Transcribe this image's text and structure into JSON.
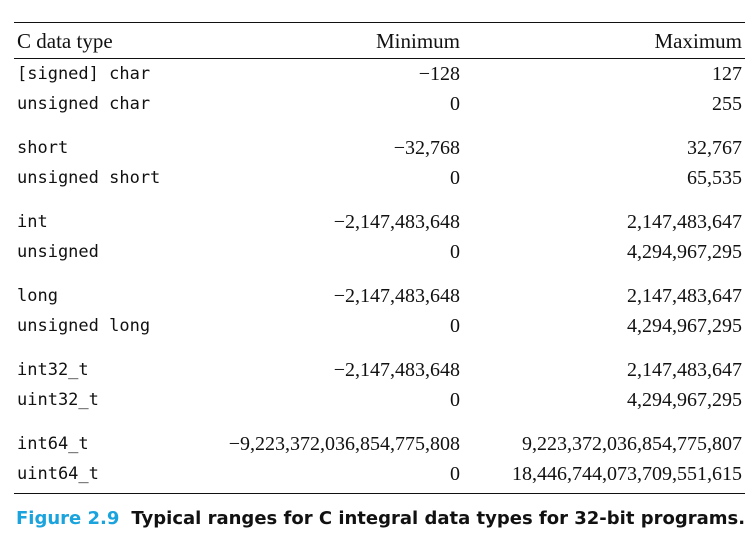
{
  "table": {
    "headers": {
      "type": "C data type",
      "minimum": "Minimum",
      "maximum": "Maximum"
    },
    "rows": [
      {
        "type_prefix": "[signed]",
        "type_main": "char",
        "min": "−128",
        "max": "127",
        "group_start": false
      },
      {
        "type_prefix": "",
        "type_main": "unsigned char",
        "min": "0",
        "max": "255",
        "group_start": false
      },
      {
        "type_prefix": "",
        "type_main": "short",
        "min": "−32,768",
        "max": "32,767",
        "group_start": true
      },
      {
        "type_prefix": "",
        "type_main": "unsigned short",
        "min": "0",
        "max": "65,535",
        "group_start": false
      },
      {
        "type_prefix": "",
        "type_main": "int",
        "min": "−2,147,483,648",
        "max": "2,147,483,647",
        "group_start": true
      },
      {
        "type_prefix": "",
        "type_main": "unsigned",
        "min": "0",
        "max": "4,294,967,295",
        "group_start": false
      },
      {
        "type_prefix": "",
        "type_main": "long",
        "min": "−2,147,483,648",
        "max": "2,147,483,647",
        "group_start": true
      },
      {
        "type_prefix": "",
        "type_main": "unsigned long",
        "min": "0",
        "max": "4,294,967,295",
        "group_start": false
      },
      {
        "type_prefix": "",
        "type_main": "int32_t",
        "min": "−2,147,483,648",
        "max": "2,147,483,647",
        "group_start": true
      },
      {
        "type_prefix": "",
        "type_main": "uint32_t",
        "min": "0",
        "max": "4,294,967,295",
        "group_start": false
      },
      {
        "type_prefix": "",
        "type_main": "int64_t",
        "min": "−9,223,372,036,854,775,808",
        "max": "9,223,372,036,854,775,807",
        "group_start": true
      },
      {
        "type_prefix": "",
        "type_main": "uint64_t",
        "min": "0",
        "max": "18,446,744,073,709,551,615",
        "group_start": false
      }
    ]
  },
  "caption": {
    "label": "Figure 2.9",
    "text": "Typical ranges for C integral data types for 32-bit programs."
  },
  "colors": {
    "caption_label": "#1aa3dc",
    "text": "#111111"
  }
}
